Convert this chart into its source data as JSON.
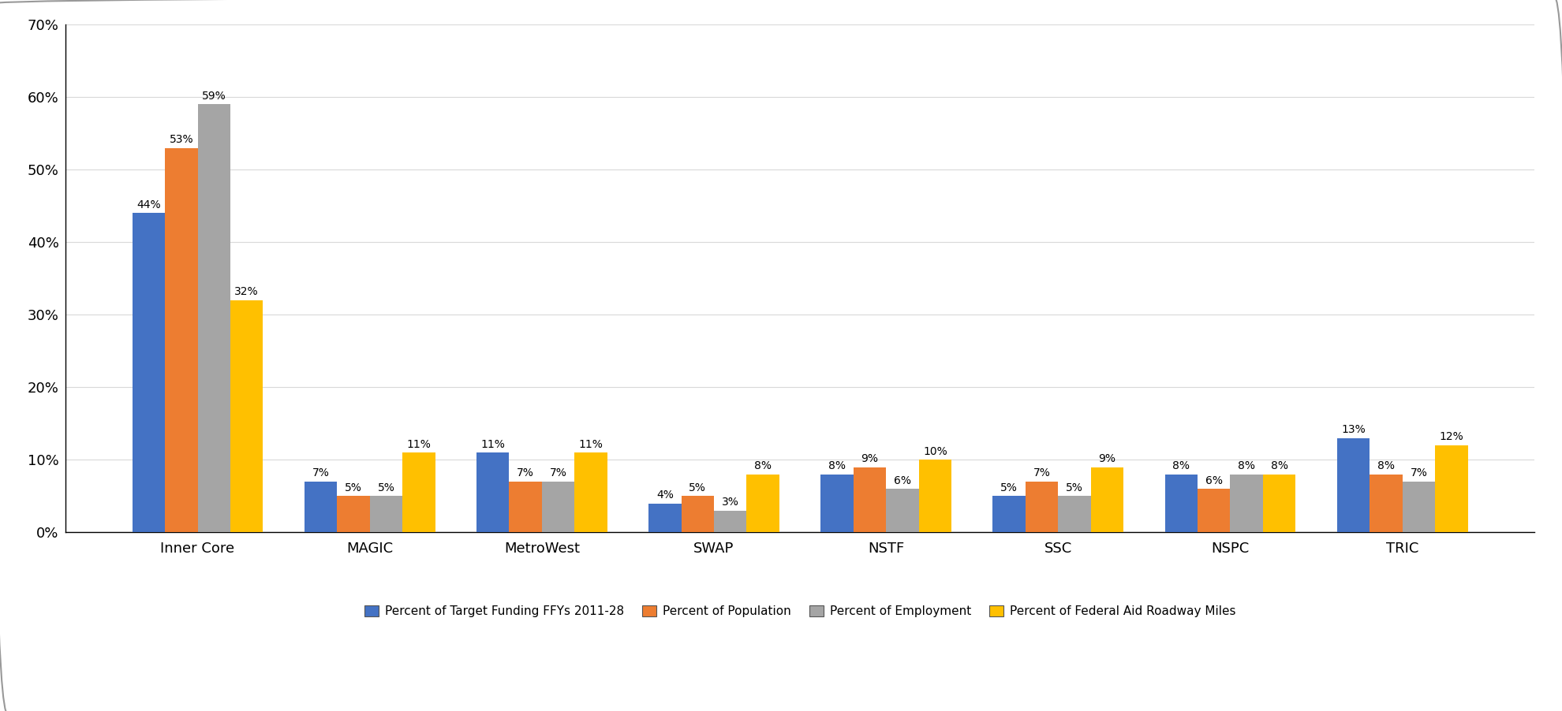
{
  "categories": [
    "Inner Core",
    "MAGIC",
    "MetroWest",
    "SWAP",
    "NSTF",
    "SSC",
    "NSPC",
    "TRIC"
  ],
  "series": {
    "Percent of Target Funding FFYs 2011-28": [
      44,
      7,
      11,
      4,
      8,
      5,
      8,
      13
    ],
    "Percent of Population": [
      53,
      5,
      7,
      5,
      9,
      7,
      6,
      8
    ],
    "Percent of Employment": [
      59,
      5,
      7,
      3,
      6,
      5,
      8,
      7
    ],
    "Percent of Federal Aid Roadway Miles": [
      32,
      11,
      11,
      8,
      10,
      9,
      8,
      12
    ]
  },
  "colors": {
    "Percent of Target Funding FFYs 2011-28": "#4472C4",
    "Percent of Population": "#ED7D31",
    "Percent of Employment": "#A5A5A5",
    "Percent of Federal Aid Roadway Miles": "#FFC000"
  },
  "ylim": [
    0,
    70
  ],
  "yticks": [
    0,
    10,
    20,
    30,
    40,
    50,
    60,
    70
  ],
  "ytick_labels": [
    "0%",
    "10%",
    "20%",
    "30%",
    "40%",
    "50%",
    "60%",
    "70%"
  ],
  "background_color": "#FFFFFF",
  "grid_color": "#D9D9D9",
  "bar_width": 0.19,
  "figsize": [
    19.8,
    9.02
  ],
  "dpi": 100,
  "label_fontsize": 10,
  "tick_fontsize": 13,
  "legend_fontsize": 11
}
